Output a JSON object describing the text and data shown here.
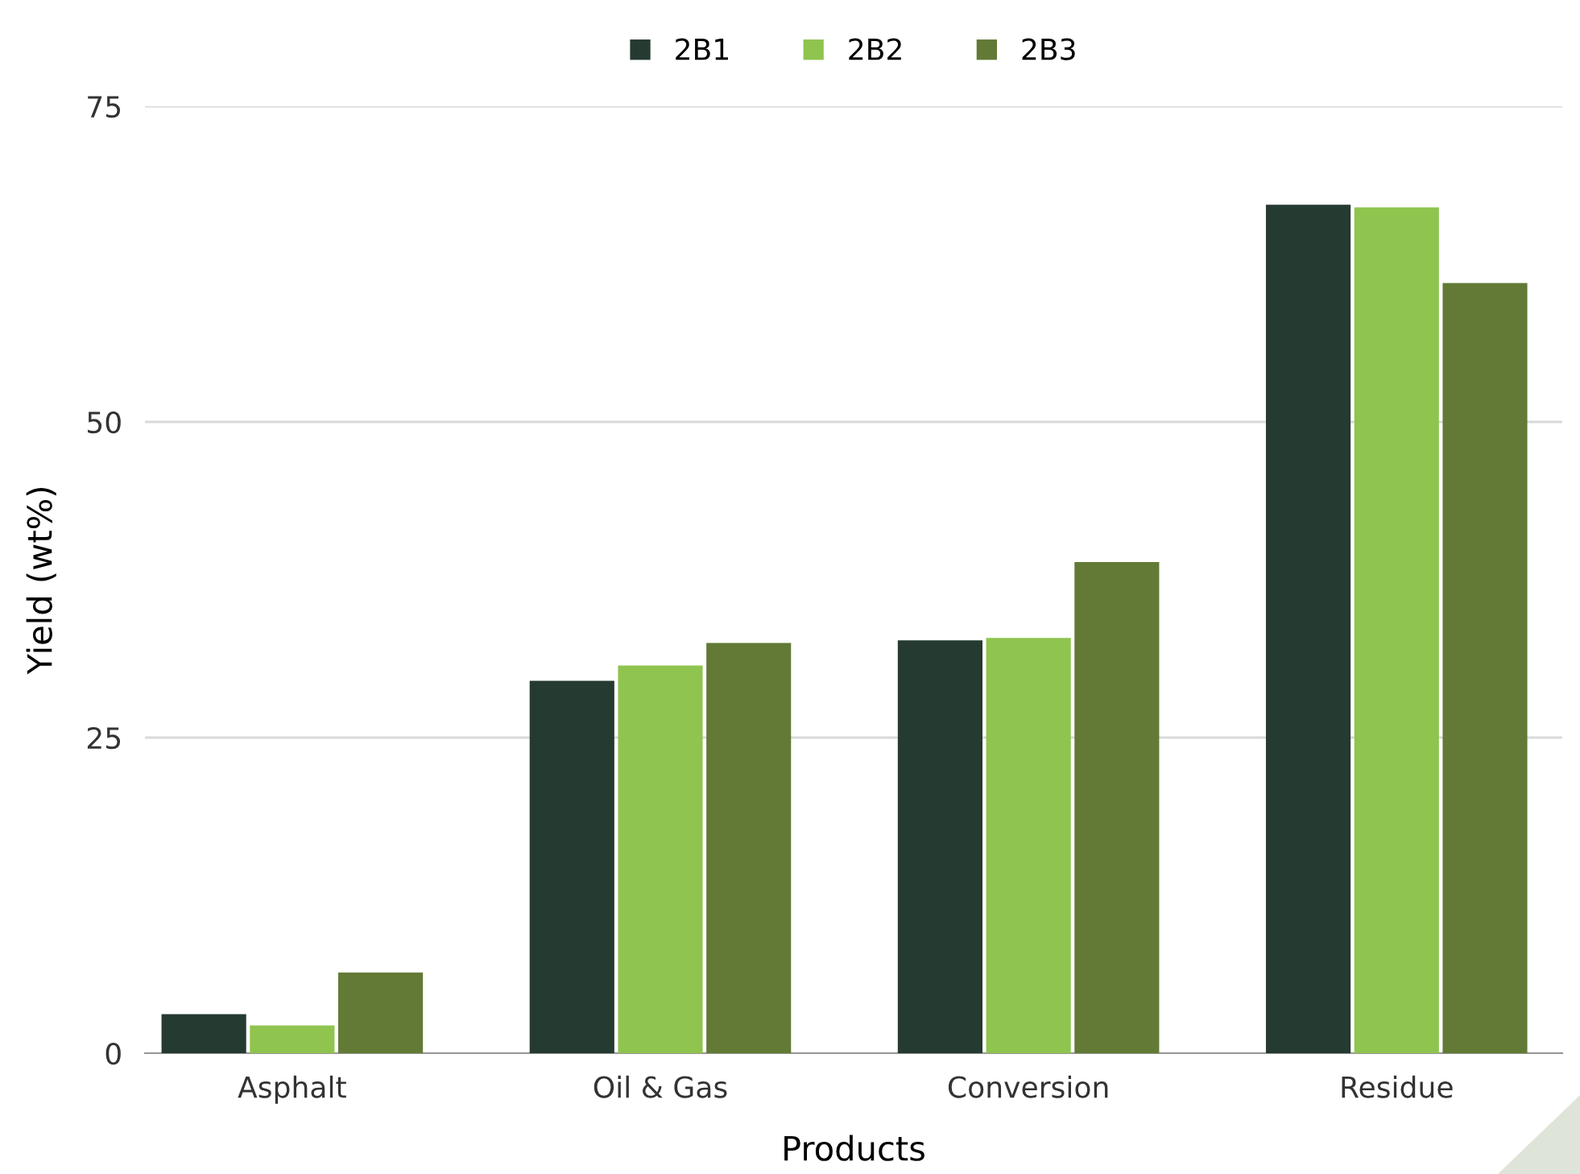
{
  "chart_data": {
    "type": "bar",
    "xlabel": "Products",
    "ylabel": "Yield (wt%)",
    "categories": [
      "Asphalt",
      "Oil & Gas",
      "Conversion",
      "Residue"
    ],
    "series": [
      {
        "name": "2B1",
        "color": "#253a30",
        "values": [
          3.1,
          29.5,
          32.7,
          67.2
        ]
      },
      {
        "name": "2B2",
        "color": "#8fc44f",
        "values": [
          2.2,
          30.7,
          32.9,
          67.0
        ]
      },
      {
        "name": "2B3",
        "color": "#627a35",
        "values": [
          6.4,
          32.5,
          38.9,
          61.0
        ]
      }
    ],
    "ylim": [
      0,
      75
    ],
    "yticks": [
      0,
      25,
      50,
      75
    ],
    "grid": "y",
    "legend": "top"
  }
}
